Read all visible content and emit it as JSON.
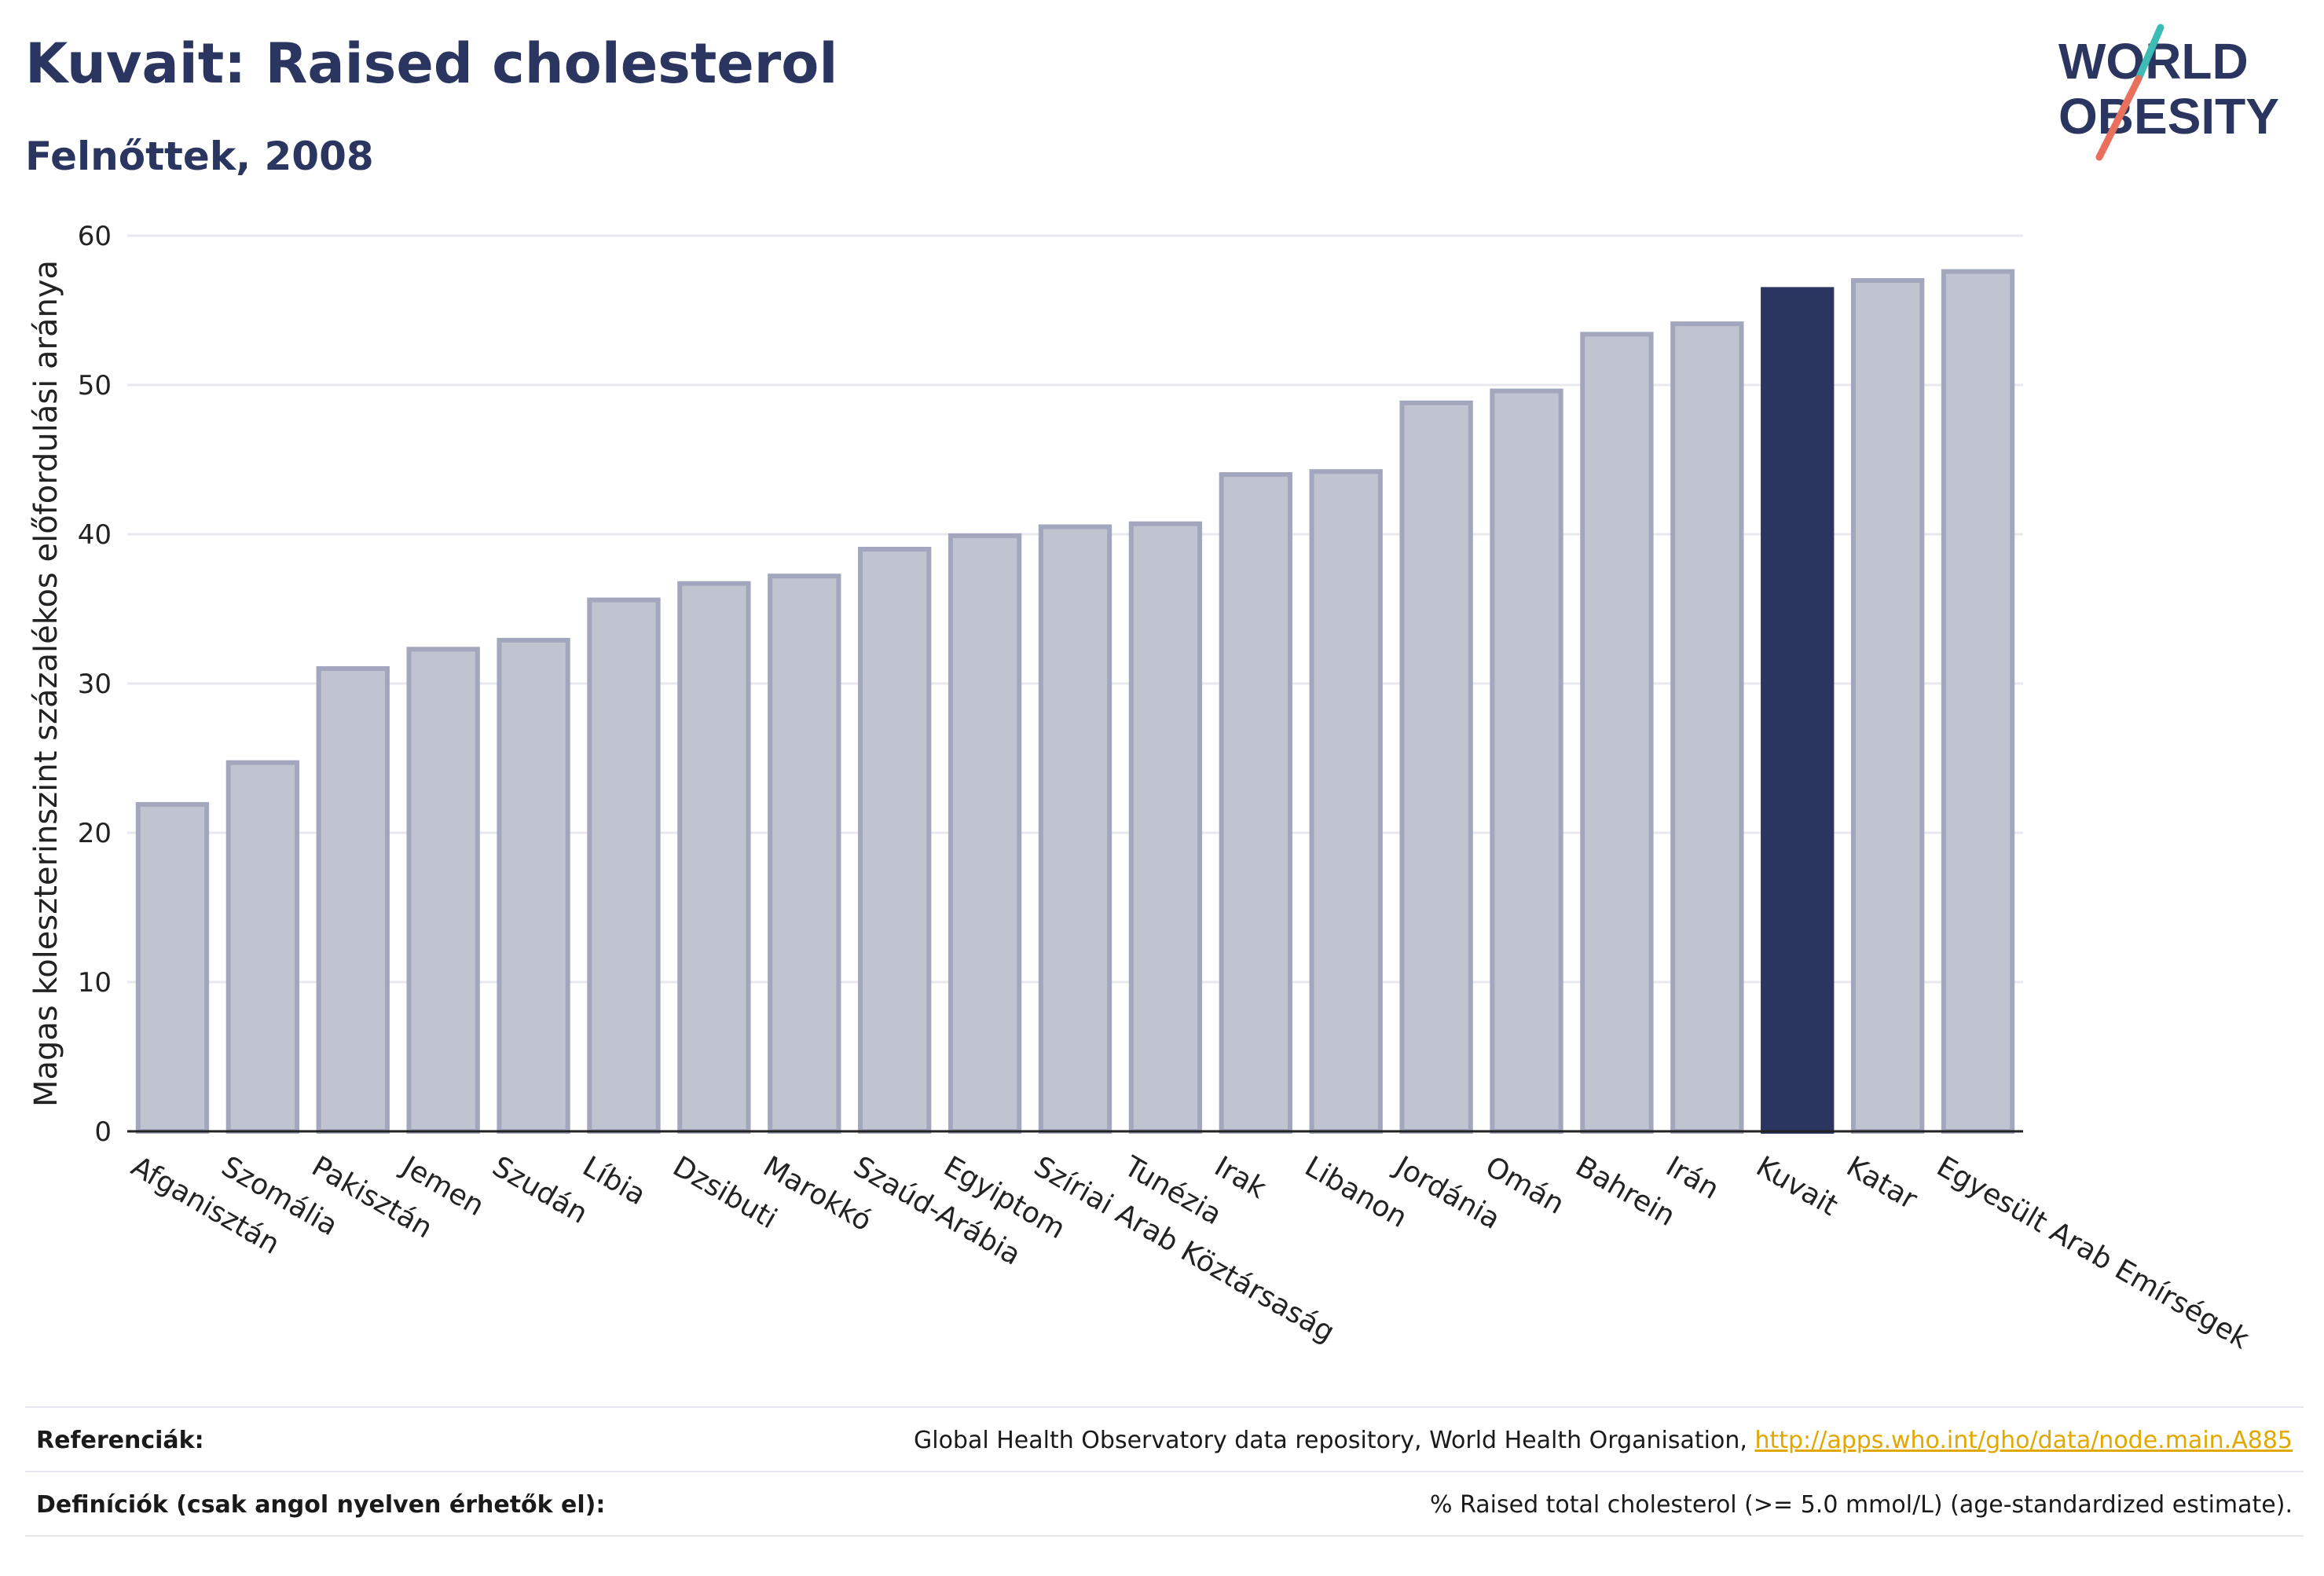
{
  "header": {
    "title": "Kuvait: Raised cholesterol",
    "subtitle": "Felnőttek, 2008"
  },
  "logo": {
    "line1": "WORLD",
    "line2": "OBESITY"
  },
  "footer": {
    "references_label": "Referenciák:",
    "references_text": "Global Health Observatory data repository, World Health Organisation,",
    "references_link": "http://apps.who.int/gho/data/node.main.A885",
    "definitions_label": "Definíciók (csak angol nyelven érhetők el):",
    "definitions_text": "% Raised total cholesterol (>= 5.0 mmol/L) (age-standardized estimate)."
  },
  "colors": {
    "bar_default": "#c0c3d0",
    "bar_default_stroke": "#a2a7bd",
    "bar_highlight": "#2a3560",
    "gridline": "#e8e8ee",
    "text": "#2a3560"
  },
  "chart_data": {
    "type": "bar",
    "ylabel": "Magas koleszterinszint százalékos előfordulási aránya",
    "xlabel": "",
    "ylim": [
      0,
      60
    ],
    "yticks": [
      0,
      10,
      20,
      30,
      40,
      50,
      60
    ],
    "grid": true,
    "highlight": "Kuvait",
    "categories": [
      "Afganisztán",
      "Szomália",
      "Pakisztán",
      "Jemen",
      "Szudán",
      "Líbia",
      "Dzsibuti",
      "Marokkó",
      "Szaúd-Arábia",
      "Egyiptom",
      "Szíriai Arab Köztársaság",
      "Tunézia",
      "Irak",
      "Libanon",
      "Jordánia",
      "Omán",
      "Bahrein",
      "Irán",
      "Kuvait",
      "Katar",
      "Egyesült Arab Emírségek"
    ],
    "values": [
      21.9,
      24.7,
      31.0,
      32.3,
      32.9,
      35.6,
      36.7,
      37.2,
      39.0,
      39.9,
      40.5,
      40.7,
      44.0,
      44.2,
      48.8,
      49.6,
      53.4,
      54.1,
      56.4,
      57.0,
      57.6
    ]
  }
}
